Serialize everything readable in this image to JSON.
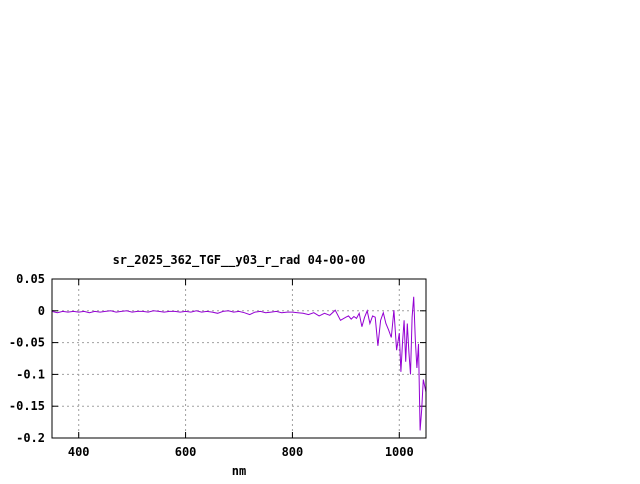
{
  "chart_data": {
    "type": "line",
    "title": "sr_2025_362_TGF__y03_r_rad 04-00-00",
    "xlabel": "nm",
    "ylabel": "",
    "xlim": [
      350,
      1050
    ],
    "ylim": [
      -0.2,
      0.05
    ],
    "xticks": [
      400,
      600,
      800,
      1000
    ],
    "yticks": [
      0.05,
      0,
      -0.05,
      -0.1,
      -0.15,
      -0.2
    ],
    "ytick_labels": [
      "0.05",
      "0",
      "-0.05",
      "-0.1",
      "-0.15",
      "-0.2"
    ],
    "grid": true,
    "color": "#9400d3",
    "series": [
      {
        "x": [
          350,
          360,
          370,
          380,
          390,
          400,
          410,
          420,
          430,
          440,
          450,
          460,
          470,
          480,
          490,
          500,
          510,
          520,
          530,
          540,
          550,
          560,
          570,
          580,
          590,
          600,
          610,
          620,
          630,
          640,
          650,
          660,
          670,
          680,
          690,
          700,
          710,
          720,
          730,
          740,
          750,
          760,
          770,
          780,
          790,
          800,
          810,
          820,
          830,
          840,
          850,
          860,
          870,
          880,
          890,
          900,
          905,
          910,
          915,
          920,
          925,
          930,
          935,
          940,
          945,
          950,
          955,
          960,
          965,
          970,
          975,
          980,
          985,
          990,
          995,
          1000,
          1003,
          1006,
          1009,
          1012,
          1015,
          1018,
          1021,
          1024,
          1027,
          1030,
          1033,
          1036,
          1039,
          1042,
          1045,
          1048,
          1050
        ],
        "y": [
          -0.001,
          -0.003,
          -0.001,
          -0.002,
          -0.001,
          -0.002,
          -0.001,
          -0.003,
          -0.001,
          -0.002,
          -0.001,
          0.0,
          -0.002,
          -0.001,
          0.0,
          -0.002,
          -0.001,
          -0.001,
          -0.002,
          0.0,
          -0.001,
          -0.002,
          -0.001,
          -0.001,
          -0.002,
          -0.001,
          -0.002,
          0.0,
          -0.002,
          -0.001,
          -0.002,
          -0.004,
          -0.001,
          0.0,
          -0.002,
          -0.001,
          -0.003,
          -0.006,
          -0.002,
          -0.001,
          -0.003,
          -0.002,
          -0.001,
          -0.003,
          -0.002,
          -0.002,
          -0.003,
          -0.004,
          -0.006,
          -0.003,
          -0.008,
          -0.004,
          -0.007,
          0.001,
          -0.015,
          -0.01,
          -0.008,
          -0.013,
          -0.009,
          -0.012,
          -0.004,
          -0.025,
          -0.01,
          0.0,
          -0.02,
          -0.008,
          -0.01,
          -0.055,
          -0.015,
          -0.003,
          -0.02,
          -0.03,
          -0.042,
          0.001,
          -0.062,
          -0.035,
          -0.096,
          -0.05,
          -0.015,
          -0.08,
          -0.02,
          -0.065,
          -0.1,
          -0.01,
          0.022,
          -0.045,
          -0.09,
          -0.052,
          -0.188,
          -0.155,
          -0.108,
          -0.12,
          -0.128
        ]
      }
    ]
  }
}
